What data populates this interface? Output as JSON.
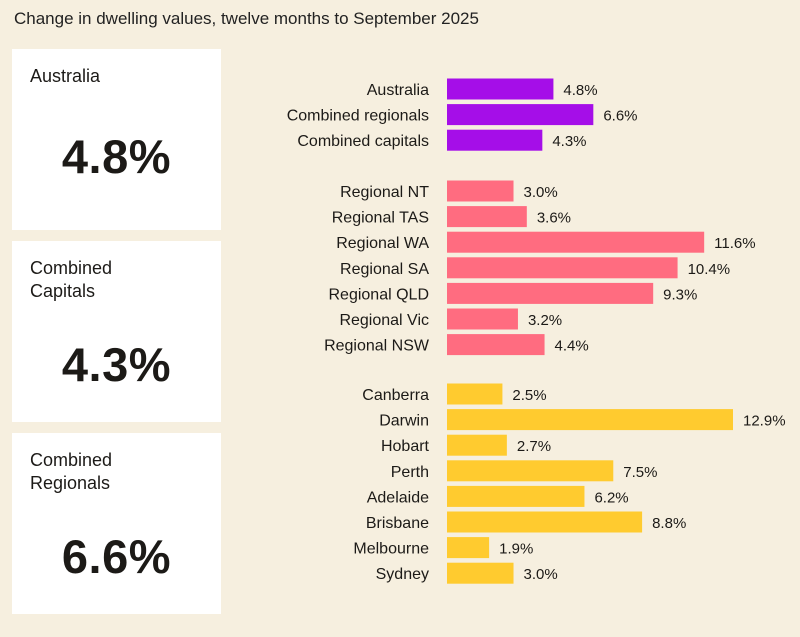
{
  "title": "Change in dwelling values, twelve months to September 2025",
  "cards": [
    {
      "label": "Australia",
      "value": "4.8%"
    },
    {
      "label": "Combined\nCapitals",
      "value": "4.3%"
    },
    {
      "label": "Combined\nRegionals",
      "value": "6.6%"
    }
  ],
  "colors": {
    "national": "#a50ee8",
    "regional": "#ff6c80",
    "capital": "#ffcb2f",
    "background": "#f6efdf",
    "card": "#ffffff"
  },
  "chart_data": {
    "type": "bar",
    "orientation": "horizontal",
    "unit": "%",
    "groups": [
      {
        "color_key": "national",
        "categories": [
          "Australia",
          "Combined regionals",
          "Combined capitals"
        ],
        "values": [
          4.8,
          6.6,
          4.3
        ],
        "labels": [
          "4.8%",
          "6.6%",
          "4.3%"
        ]
      },
      {
        "color_key": "regional",
        "categories": [
          "Regional NT",
          "Regional TAS",
          "Regional WA",
          "Regional SA",
          "Regional QLD",
          "Regional Vic",
          "Regional NSW"
        ],
        "values": [
          3.0,
          3.6,
          11.6,
          10.4,
          9.3,
          3.2,
          4.4
        ],
        "labels": [
          "3.0%",
          "3.6%",
          "11.6%",
          "10.4%",
          "9.3%",
          "3.2%",
          "4.4%"
        ]
      },
      {
        "color_key": "capital",
        "categories": [
          "Canberra",
          "Darwin",
          "Hobart",
          "Perth",
          "Adelaide",
          "Brisbane",
          "Melbourne",
          "Sydney"
        ],
        "values": [
          2.5,
          12.9,
          2.7,
          7.5,
          6.2,
          8.8,
          1.9,
          3.0
        ],
        "labels": [
          "2.5%",
          "12.9%",
          "2.7%",
          "7.5%",
          "6.2%",
          "8.8%",
          "1.9%",
          "3.0%"
        ]
      }
    ],
    "xlim": [
      0,
      12.9
    ],
    "grid": false,
    "legend": "none"
  }
}
